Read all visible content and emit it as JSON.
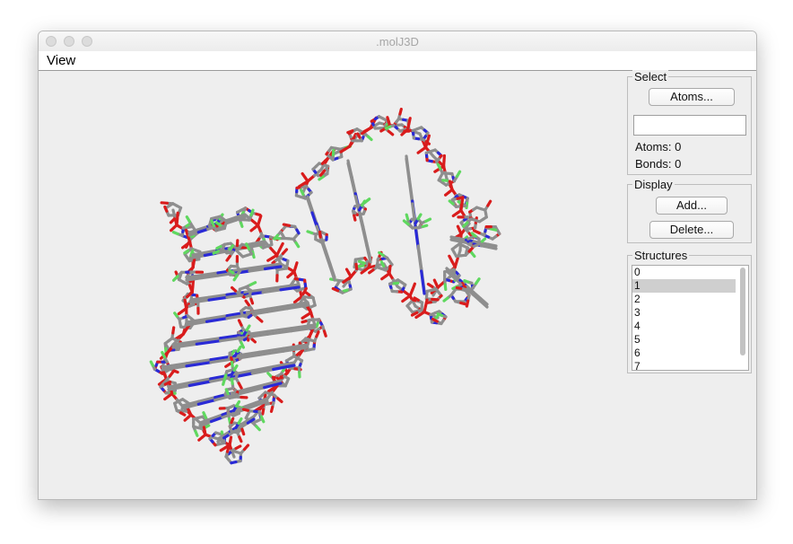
{
  "window": {
    "title": ".molJ3D"
  },
  "menubar": {
    "items": [
      "View"
    ]
  },
  "select_panel": {
    "legend": "Select",
    "atoms_button": "Atoms...",
    "search_value": "",
    "atoms_label": "Atoms:",
    "atoms_count": "0",
    "bonds_label": "Bonds:",
    "bonds_count": "0"
  },
  "display_panel": {
    "legend": "Display",
    "add_button": "Add...",
    "delete_button": "Delete..."
  },
  "structures_panel": {
    "legend": "Structures",
    "items": [
      "0",
      "1",
      "2",
      "3",
      "4",
      "5",
      "6",
      "7"
    ],
    "selected": "1"
  },
  "viewer": {
    "atom_colors": {
      "carbon": "#8e8e8e",
      "oxygen": "#d91c1c",
      "nitrogen": "#2a2ad6",
      "hydrogen": "#5fd85f"
    }
  }
}
